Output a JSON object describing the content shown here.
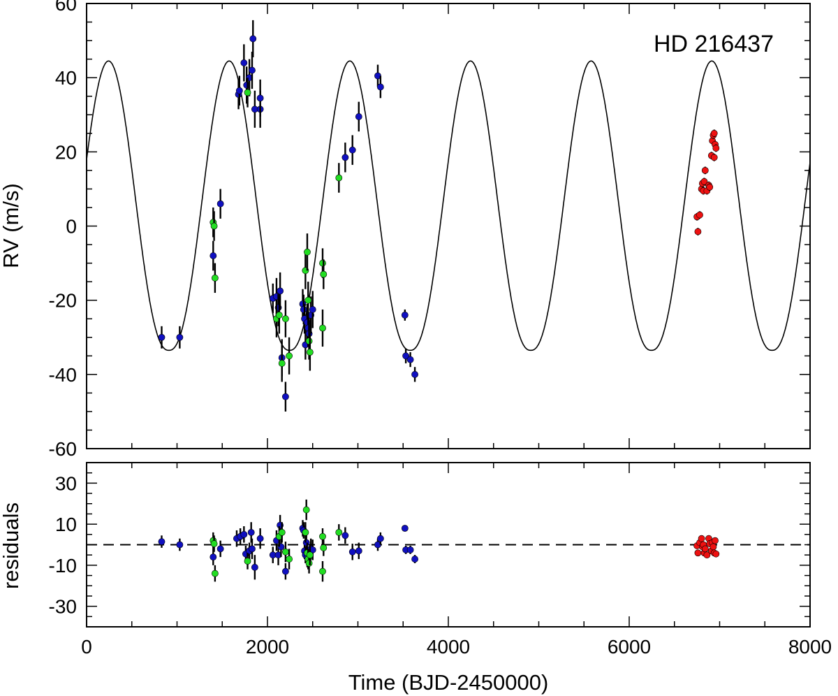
{
  "chart_data": {
    "type": "scatter",
    "title": "HD 216437",
    "xlabel": "Time (BJD-2450000)",
    "xlim": [
      0,
      8000
    ],
    "xticks": [
      "0",
      "2000",
      "4000",
      "6000",
      "8000"
    ],
    "colors": {
      "series_a": "#1010c0",
      "series_b": "#22dd22",
      "series_c": "#ee1111",
      "model": "#000000"
    },
    "model": {
      "period": 1334,
      "K": 39,
      "offset": 5.5,
      "t_min": 910,
      "shape_power": 1.2
    },
    "rv_panel": {
      "ylabel": "RV (m/s)",
      "ylim": [
        -60,
        60
      ],
      "yticks": [
        "-60",
        "-40",
        "-20",
        "0",
        "20",
        "40",
        "60"
      ],
      "series": [
        {
          "name": "blue",
          "color_key": "series_a",
          "points": [
            [
              830,
              -30,
              3
            ],
            [
              1030,
              -30,
              3
            ],
            [
              1400,
              -8,
              4
            ],
            [
              1480,
              6,
              4
            ],
            [
              1680,
              35.5,
              4
            ],
            [
              1690,
              36.5,
              4
            ],
            [
              1740,
              44,
              5
            ],
            [
              1770,
              38,
              5
            ],
            [
              1800,
              40,
              5
            ],
            [
              1830,
              42,
              5
            ],
            [
              1840,
              50.5,
              5
            ],
            [
              1860,
              31.5,
              5
            ],
            [
              1920,
              31.5,
              5
            ],
            [
              1920,
              34.5,
              5
            ],
            [
              2060,
              -19.5,
              4
            ],
            [
              2100,
              -19,
              5
            ],
            [
              2120,
              -22,
              5
            ],
            [
              2140,
              -17.5,
              5
            ],
            [
              2160,
              -35.5,
              5
            ],
            [
              2200,
              -46,
              4
            ],
            [
              2390,
              -21,
              4
            ],
            [
              2400,
              -22.5,
              4
            ],
            [
              2410,
              -25,
              4
            ],
            [
              2420,
              -32,
              4
            ],
            [
              2440,
              -26,
              5
            ],
            [
              2450,
              -27.5,
              5
            ],
            [
              2460,
              -29,
              5
            ],
            [
              2480,
              -24,
              5
            ],
            [
              2500,
              -22.5,
              5
            ],
            [
              2860,
              18.5,
              4
            ],
            [
              2940,
              20.5,
              4
            ],
            [
              3010,
              29.5,
              4
            ],
            [
              3220,
              40.5,
              3
            ],
            [
              3250,
              37.5,
              3
            ],
            [
              3520,
              -24,
              1.5
            ],
            [
              3530,
              -35,
              2
            ],
            [
              3580,
              -36,
              2
            ],
            [
              3630,
              -40,
              2
            ]
          ]
        },
        {
          "name": "green",
          "color_key": "series_b",
          "points": [
            [
              1400,
              1,
              4
            ],
            [
              1410,
              0,
              4
            ],
            [
              1420,
              -14,
              4
            ],
            [
              1780,
              36,
              4
            ],
            [
              2100,
              -25,
              5
            ],
            [
              2130,
              -24,
              5
            ],
            [
              2160,
              -37,
              5
            ],
            [
              2200,
              -25,
              5
            ],
            [
              2240,
              -35,
              5
            ],
            [
              2420,
              -12,
              5
            ],
            [
              2440,
              -7,
              5
            ],
            [
              2450,
              -20,
              5
            ],
            [
              2460,
              -31,
              5
            ],
            [
              2470,
              -34,
              5
            ],
            [
              2610,
              -27.5,
              5
            ],
            [
              2610,
              -10,
              4
            ],
            [
              2620,
              -13,
              4
            ],
            [
              2790,
              13,
              4
            ]
          ]
        },
        {
          "name": "red",
          "color_key": "series_c",
          "points": [
            [
              6750,
              2.5,
              1
            ],
            [
              6760,
              -1.5,
              1
            ],
            [
              6780,
              3,
              1
            ],
            [
              6800,
              10,
              1
            ],
            [
              6810,
              11.5,
              1
            ],
            [
              6820,
              9.5,
              1
            ],
            [
              6830,
              12,
              1
            ],
            [
              6840,
              15,
              1
            ],
            [
              6860,
              9.5,
              1
            ],
            [
              6880,
              11,
              1
            ],
            [
              6890,
              10.5,
              1
            ],
            [
              6910,
              19,
              1
            ],
            [
              6920,
              23,
              1
            ],
            [
              6930,
              24.5,
              1
            ],
            [
              6940,
              25,
              1
            ],
            [
              6950,
              22,
              1
            ],
            [
              6960,
              21,
              1
            ],
            [
              6940,
              18.5,
              1
            ]
          ]
        }
      ]
    },
    "residual_panel": {
      "ylabel": "residuals",
      "ylim": [
        -40,
        40
      ],
      "yticks": [
        "-30",
        "-10",
        "10",
        "30"
      ],
      "ytick_values": [
        -30,
        -10,
        10,
        30
      ],
      "zero_line": "dashed",
      "series": [
        {
          "name": "blue",
          "color_key": "series_a",
          "points": [
            [
              830,
              1.5,
              3
            ],
            [
              1030,
              0,
              3
            ],
            [
              1400,
              -6,
              4
            ],
            [
              1480,
              -2,
              4
            ],
            [
              1660,
              3,
              4
            ],
            [
              1700,
              4,
              4
            ],
            [
              1740,
              5,
              4
            ],
            [
              1760,
              -4.5,
              4
            ],
            [
              1800,
              -3,
              4
            ],
            [
              1820,
              6,
              5
            ],
            [
              1830,
              -2,
              5
            ],
            [
              1860,
              -11,
              6
            ],
            [
              1920,
              3,
              5
            ],
            [
              2060,
              -5,
              4
            ],
            [
              2100,
              2,
              5
            ],
            [
              2120,
              -5,
              5
            ],
            [
              2140,
              9.5,
              5
            ],
            [
              2150,
              -1,
              5
            ],
            [
              2200,
              -13,
              4
            ],
            [
              2390,
              8,
              4
            ],
            [
              2400,
              7,
              4
            ],
            [
              2410,
              -3,
              4
            ],
            [
              2420,
              -5,
              4
            ],
            [
              2430,
              1,
              5
            ],
            [
              2440,
              -6,
              5
            ],
            [
              2480,
              -2,
              5
            ],
            [
              2500,
              -2.5,
              5
            ],
            [
              2860,
              4.5,
              4
            ],
            [
              2940,
              -3.5,
              4
            ],
            [
              3010,
              -3,
              4
            ],
            [
              3220,
              0,
              3
            ],
            [
              3250,
              3,
              3
            ],
            [
              3520,
              8,
              1.5
            ],
            [
              3530,
              -2.5,
              2
            ],
            [
              3580,
              -2.5,
              2
            ],
            [
              3630,
              -7,
              2
            ]
          ]
        },
        {
          "name": "green",
          "color_key": "series_b",
          "points": [
            [
              1400,
              2,
              4
            ],
            [
              1410,
              0.5,
              4
            ],
            [
              1420,
              -14,
              4
            ],
            [
              1780,
              -8,
              4
            ],
            [
              2130,
              4,
              5
            ],
            [
              2160,
              6,
              5
            ],
            [
              2200,
              -3.5,
              5
            ],
            [
              2240,
              -7,
              5
            ],
            [
              2420,
              6,
              5
            ],
            [
              2430,
              17,
              5
            ],
            [
              2440,
              -4,
              5
            ],
            [
              2450,
              -7,
              5
            ],
            [
              2460,
              -9,
              5
            ],
            [
              2470,
              -5,
              5
            ],
            [
              2610,
              -13,
              5
            ],
            [
              2610,
              4,
              4
            ],
            [
              2620,
              -1.5,
              4
            ],
            [
              2790,
              6,
              4
            ]
          ]
        },
        {
          "name": "red",
          "color_key": "series_c",
          "points": [
            [
              6750,
              -0.5,
              1
            ],
            [
              6760,
              -4,
              1
            ],
            [
              6780,
              1,
              1
            ],
            [
              6800,
              3,
              1
            ],
            [
              6810,
              -1,
              1
            ],
            [
              6820,
              0,
              1
            ],
            [
              6830,
              -4,
              1
            ],
            [
              6840,
              -2,
              1
            ],
            [
              6860,
              -5,
              1
            ],
            [
              6880,
              3,
              1
            ],
            [
              6890,
              0.5,
              1
            ],
            [
              6910,
              -3,
              1
            ],
            [
              6920,
              1,
              1
            ],
            [
              6930,
              -1,
              1
            ],
            [
              6940,
              -4,
              1
            ],
            [
              6950,
              2,
              1
            ],
            [
              6960,
              -4.5,
              1
            ]
          ]
        }
      ]
    }
  }
}
